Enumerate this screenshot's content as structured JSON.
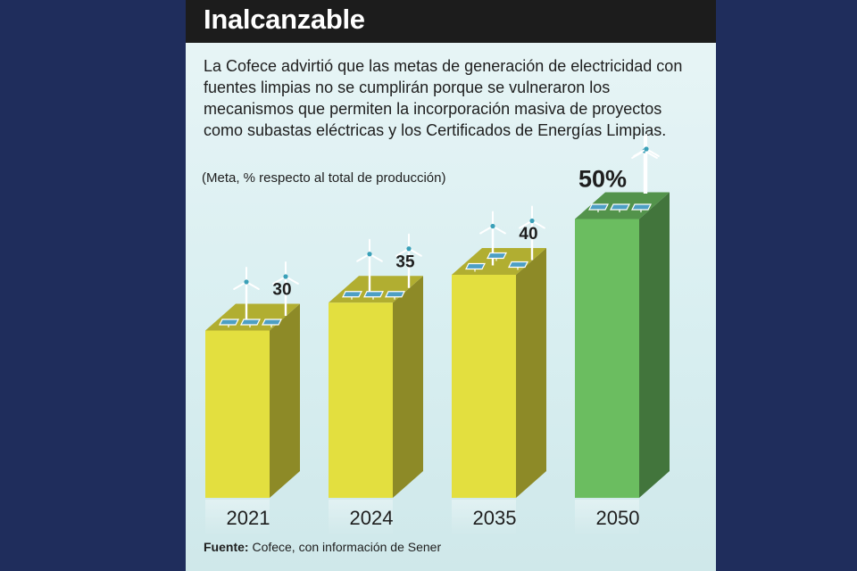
{
  "header": {
    "title": "Inalcanzable"
  },
  "description": "La Cofece advirtió que las metas de generación de electricidad con fuentes limpias no se cumplirán porque se vulneraron los mecanismos que permiten la incorporación masiva de proyectos como subastas eléctricas y los Certificados de Energías Limpias.",
  "units": "(Meta, % respecto al total de producción)",
  "source": {
    "label": "Fuente:",
    "text": "Cofece, con información de Sener"
  },
  "colors": {
    "yellow_bar": "#e3df3f",
    "green_bar": "#6bbd60",
    "background": "#1f2d5c",
    "title_bar": "#1c1c1c"
  },
  "chart_data": {
    "type": "bar",
    "categories": [
      "2021",
      "2024",
      "2035",
      "2050"
    ],
    "values": [
      30,
      35,
      40,
      50
    ],
    "value_labels": [
      "30",
      "35",
      "40",
      "50%"
    ],
    "highlighted_category": "2050",
    "decorations": [
      "wind-turbine-icon",
      "solar-panel-icon"
    ]
  }
}
